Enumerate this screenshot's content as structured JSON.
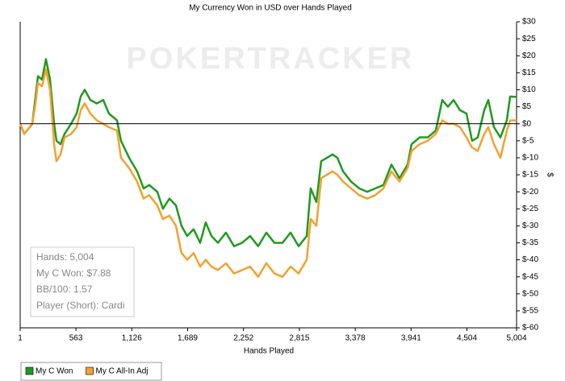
{
  "chart_data": {
    "type": "line",
    "title": "My Currency Won in USD over Hands Played",
    "watermark": "POKERTRACKER",
    "x_label": "Hands Played",
    "y_label": "$",
    "x": [
      1,
      42,
      123,
      156,
      180,
      221,
      261,
      302,
      343,
      367,
      408,
      448,
      514,
      570,
      611,
      652,
      708,
      773,
      838,
      895,
      977,
      1017,
      1099,
      1180,
      1245,
      1302,
      1383,
      1440,
      1505,
      1571,
      1627,
      1684,
      1749,
      1815,
      1871,
      1929,
      1994,
      2075,
      2156,
      2238,
      2319,
      2400,
      2482,
      2563,
      2645,
      2726,
      2807,
      2889,
      2929,
      2986,
      3035,
      3092,
      3149,
      3198,
      3255,
      3336,
      3418,
      3499,
      3580,
      3662,
      3743,
      3824,
      3906,
      3946,
      4027,
      4109,
      4190,
      4255,
      4312,
      4369,
      4434,
      4499,
      4556,
      4613,
      4678,
      4719,
      4776,
      4841,
      4906,
      4939,
      5004
    ],
    "series": [
      {
        "name": "My C Won",
        "color": "#1f9a1f",
        "values": [
          0,
          -3,
          0,
          8,
          14,
          13,
          19,
          13,
          0,
          -5,
          -6,
          -3,
          0,
          3,
          8,
          10,
          7,
          6,
          7,
          3,
          1,
          -5,
          -10,
          -14,
          -19,
          -18,
          -20,
          -25,
          -22,
          -24,
          -30,
          -33,
          -31,
          -35,
          -29,
          -33,
          -35,
          -32,
          -36,
          -35,
          -33,
          -36,
          -32,
          -35,
          -35,
          -32,
          -36,
          -33,
          -19,
          -23,
          -11,
          -10,
          -9,
          -10,
          -14,
          -17,
          -19,
          -20,
          -19,
          -18,
          -12,
          -16,
          -12,
          -6,
          -4,
          -4,
          -2,
          7,
          5,
          7,
          4,
          3,
          -5,
          -4,
          4,
          7,
          -1,
          -4,
          1,
          8,
          7.9
        ]
      },
      {
        "name": "My C All-In Adj",
        "color": "#f5a030",
        "values": [
          0,
          -3,
          0,
          6,
          12,
          11,
          16,
          10,
          -6,
          -11,
          -9,
          -4,
          -3,
          -1,
          4,
          6,
          3,
          1,
          0,
          -1,
          -2,
          -10,
          -13,
          -17,
          -22,
          -21,
          -24,
          -28,
          -27,
          -30,
          -38,
          -40,
          -38,
          -42,
          -40,
          -42,
          -43,
          -41,
          -44,
          -43,
          -42,
          -45,
          -41,
          -44,
          -45,
          -42,
          -44,
          -40,
          -28,
          -30,
          -16,
          -15,
          -14,
          -15,
          -17,
          -19,
          -21,
          -22,
          -21,
          -19,
          -14,
          -17,
          -13,
          -8,
          -6,
          -5,
          -3,
          1,
          0,
          0,
          -1,
          -4,
          -7,
          -8,
          -3,
          -1,
          -6,
          -10,
          -2,
          1,
          1
        ]
      }
    ],
    "xlim": [
      1,
      5004
    ],
    "xticks": [
      1,
      563,
      {
        "value": 1126,
        "label": "1,126"
      },
      {
        "value": 1689,
        "label": "1,689"
      },
      {
        "value": 2252,
        "label": "2,252"
      },
      {
        "value": 2815,
        "label": "2,815"
      },
      {
        "value": 3378,
        "label": "3,378"
      },
      {
        "value": 3941,
        "label": "3,941"
      },
      {
        "value": 4504,
        "label": "4,504"
      },
      {
        "value": 5004,
        "label": "5,004"
      }
    ],
    "ylim": [
      -60,
      30
    ],
    "yticks": [
      {
        "value": 30,
        "label": "$30"
      },
      {
        "value": 25,
        "label": "$25"
      },
      {
        "value": 20,
        "label": "$20"
      },
      {
        "value": 15,
        "label": "$15"
      },
      {
        "value": 10,
        "label": "$10"
      },
      {
        "value": 5,
        "label": "$5"
      },
      {
        "value": 0,
        "label": "$0"
      },
      {
        "value": -5,
        "label": "$-5"
      },
      {
        "value": -10,
        "label": "$-10"
      },
      {
        "value": -15,
        "label": "$-15"
      },
      {
        "value": -20,
        "label": "$-20"
      },
      {
        "value": -25,
        "label": "$-25"
      },
      {
        "value": -30,
        "label": "$-30"
      },
      {
        "value": -35,
        "label": "$-35"
      },
      {
        "value": -40,
        "label": "$-40"
      },
      {
        "value": -45,
        "label": "$-45"
      },
      {
        "value": -50,
        "label": "$-50"
      },
      {
        "value": -55,
        "label": "$-55"
      },
      {
        "value": -60,
        "label": "$-60"
      }
    ],
    "y_axis_side": "right",
    "zero_line": true,
    "grid": false,
    "legend": "bottom-left",
    "info_box": {
      "lines": [
        "Hands: 5,004",
        "My C Won: $7.88",
        "BB/100: 1.57",
        "Player (Short): Cardi"
      ]
    }
  }
}
